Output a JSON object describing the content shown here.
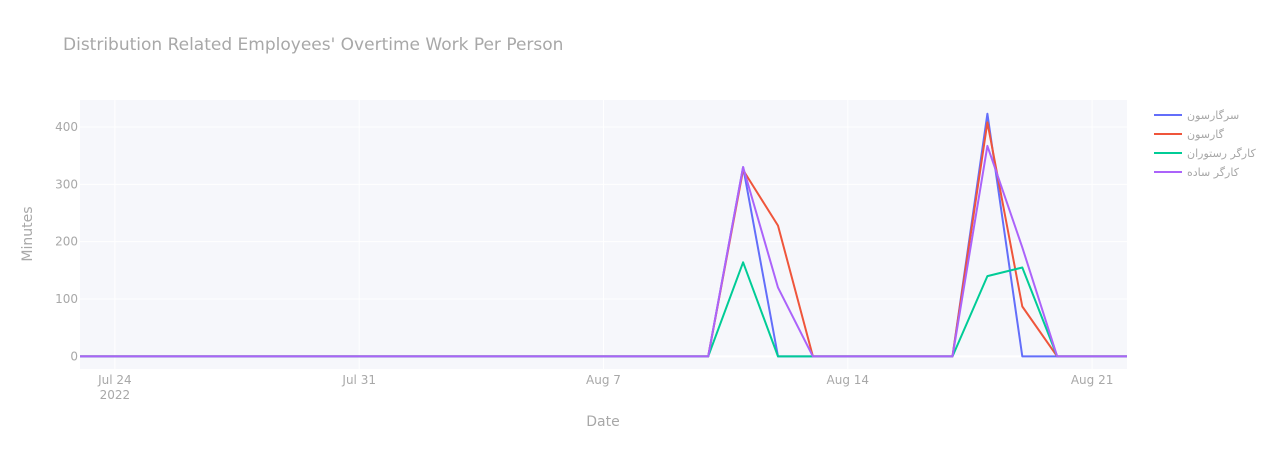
{
  "chart_data": {
    "type": "line",
    "title": "Distribution Related Employees' Overtime Work Per Person",
    "xlabel": "Date",
    "ylabel": "Minutes",
    "x_axis_type": "date",
    "xlim": [
      "2022-07-23",
      "2022-08-22"
    ],
    "ylim": [
      -22,
      447
    ],
    "x_ticks": [
      {
        "date": "2022-07-24",
        "label": "Jul 24",
        "sublabel": "2022"
      },
      {
        "date": "2022-07-31",
        "label": "Jul 31",
        "sublabel": ""
      },
      {
        "date": "2022-08-07",
        "label": "Aug 7",
        "sublabel": ""
      },
      {
        "date": "2022-08-14",
        "label": "Aug 14",
        "sublabel": ""
      },
      {
        "date": "2022-08-21",
        "label": "Aug 21",
        "sublabel": ""
      }
    ],
    "y_ticks": [
      0,
      100,
      200,
      300,
      400
    ],
    "grid": true,
    "legend_position": "top-right",
    "background": "#f6f7fb",
    "series": [
      {
        "name": "سرگارسون",
        "color": "#636efa",
        "points": [
          [
            "2022-07-23",
            0
          ],
          [
            "2022-08-10",
            0
          ],
          [
            "2022-08-11",
            330
          ],
          [
            "2022-08-12",
            0
          ],
          [
            "2022-08-13",
            0
          ],
          [
            "2022-08-17",
            0
          ],
          [
            "2022-08-18",
            423
          ],
          [
            "2022-08-19",
            0
          ],
          [
            "2022-08-20",
            0
          ],
          [
            "2022-08-22",
            0
          ]
        ]
      },
      {
        "name": "گارسون",
        "color": "#ef553b",
        "points": [
          [
            "2022-07-23",
            0
          ],
          [
            "2022-08-10",
            0
          ],
          [
            "2022-08-11",
            325
          ],
          [
            "2022-08-12",
            228
          ],
          [
            "2022-08-13",
            0
          ],
          [
            "2022-08-17",
            0
          ],
          [
            "2022-08-18",
            408
          ],
          [
            "2022-08-19",
            87
          ],
          [
            "2022-08-20",
            0
          ],
          [
            "2022-08-22",
            0
          ]
        ]
      },
      {
        "name": "کارگر رستوران",
        "color": "#00cc96",
        "points": [
          [
            "2022-07-23",
            0
          ],
          [
            "2022-08-10",
            0
          ],
          [
            "2022-08-11",
            164
          ],
          [
            "2022-08-12",
            0
          ],
          [
            "2022-08-13",
            0
          ],
          [
            "2022-08-17",
            0
          ],
          [
            "2022-08-18",
            140
          ],
          [
            "2022-08-19",
            155
          ],
          [
            "2022-08-20",
            0
          ],
          [
            "2022-08-22",
            0
          ]
        ]
      },
      {
        "name": "کارگر ساده",
        "color": "#ab63fa",
        "points": [
          [
            "2022-07-23",
            0
          ],
          [
            "2022-08-10",
            0
          ],
          [
            "2022-08-11",
            330
          ],
          [
            "2022-08-12",
            120
          ],
          [
            "2022-08-13",
            0
          ],
          [
            "2022-08-17",
            0
          ],
          [
            "2022-08-18",
            367
          ],
          [
            "2022-08-19",
            190
          ],
          [
            "2022-08-20",
            0
          ],
          [
            "2022-08-22",
            0
          ]
        ]
      }
    ]
  }
}
